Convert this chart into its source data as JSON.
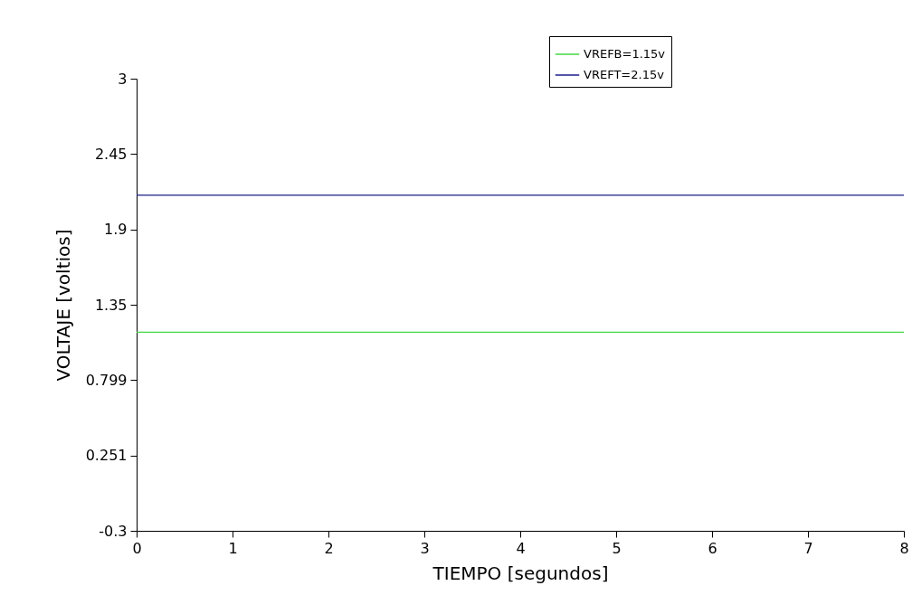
{
  "chart_data": {
    "type": "line",
    "xlabel": "TIEMPO [segundos]",
    "ylabel": "VOLTAJE [voltios]",
    "x": [
      0,
      8
    ],
    "series": [
      {
        "name": "VREFB=1.15v",
        "color": "#44d844",
        "values": [
          1.15,
          1.15
        ]
      },
      {
        "name": "VREFT=2.15v",
        "color": "#1c1c8c",
        "values": [
          2.15,
          2.15
        ]
      }
    ],
    "xlim": [
      0,
      8
    ],
    "xticks": [
      0,
      1,
      2,
      3,
      4,
      5,
      6,
      7,
      8
    ],
    "ylim": [
      -0.3,
      3
    ],
    "yticks": [
      -0.3,
      0.251,
      0.799,
      1.35,
      1.9,
      2.45,
      3
    ],
    "grid": false,
    "legend": "top right",
    "marker": "none",
    "line_style": "solid"
  }
}
